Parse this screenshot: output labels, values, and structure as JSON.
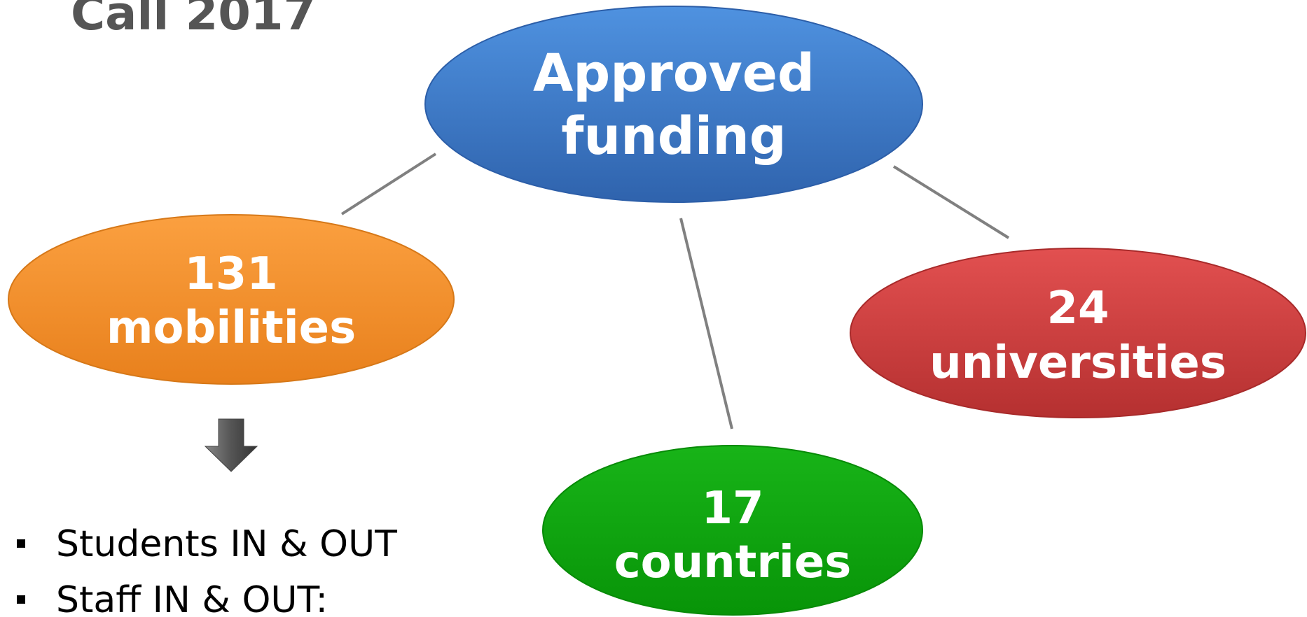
{
  "title": "Call 2017",
  "nodes": [
    {
      "lines": [
        "Approved",
        "funding"
      ]
    },
    {
      "lines": [
        "131",
        "mobilities"
      ]
    },
    {
      "lines": [
        "24",
        "universities"
      ]
    },
    {
      "lines": [
        "17",
        "countries"
      ]
    }
  ],
  "bullets": [
    "Students IN & OUT",
    "Staff IN & OUT:"
  ]
}
